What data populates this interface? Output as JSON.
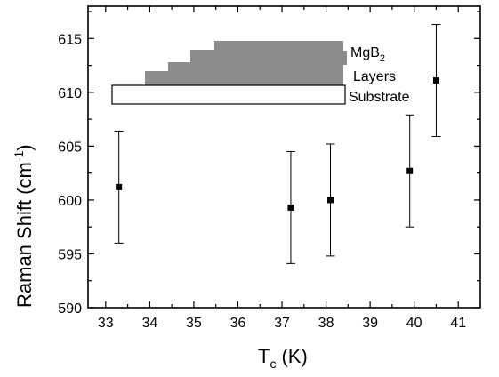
{
  "chart_data": {
    "type": "scatter",
    "title": "",
    "xlabel": {
      "main": "T",
      "sub": "c",
      "unit": "(K)"
    },
    "ylabel": {
      "text": "Raman Shift (cm",
      "sup": "-1",
      "close": ")"
    },
    "xlim": [
      32.6,
      41.5
    ],
    "ylim": [
      590,
      618
    ],
    "x_major_ticks": [
      33,
      34,
      35,
      36,
      37,
      38,
      39,
      40,
      41
    ],
    "y_major_ticks": [
      590,
      595,
      600,
      605,
      610,
      615
    ],
    "x_minor_step": 0.5,
    "y_minor_step": 2.5,
    "grid": false,
    "marker": "filled-square",
    "error_bars": true,
    "points": [
      {
        "x": 33.3,
        "y": 601.2,
        "yerr_low": 596.0,
        "yerr_high": 606.4
      },
      {
        "x": 37.2,
        "y": 599.3,
        "yerr_low": 594.1,
        "yerr_high": 604.5
      },
      {
        "x": 38.1,
        "y": 600.0,
        "yerr_low": 594.8,
        "yerr_high": 605.2
      },
      {
        "x": 39.9,
        "y": 602.7,
        "yerr_low": 597.5,
        "yerr_high": 607.9
      },
      {
        "x": 40.5,
        "y": 611.1,
        "yerr_low": 605.9,
        "yerr_high": 616.3
      }
    ],
    "inset": {
      "mgb2_label": "MgB",
      "mgb2_sub": "2",
      "layers_label": "Layers",
      "substrate_label": "Substrate",
      "layer_fill_color": "#8c8c8c",
      "substrate_fill_color": "#ffffff"
    }
  },
  "colors": {
    "axis": "#000000",
    "marker": "#000000",
    "background": "#ffffff"
  }
}
